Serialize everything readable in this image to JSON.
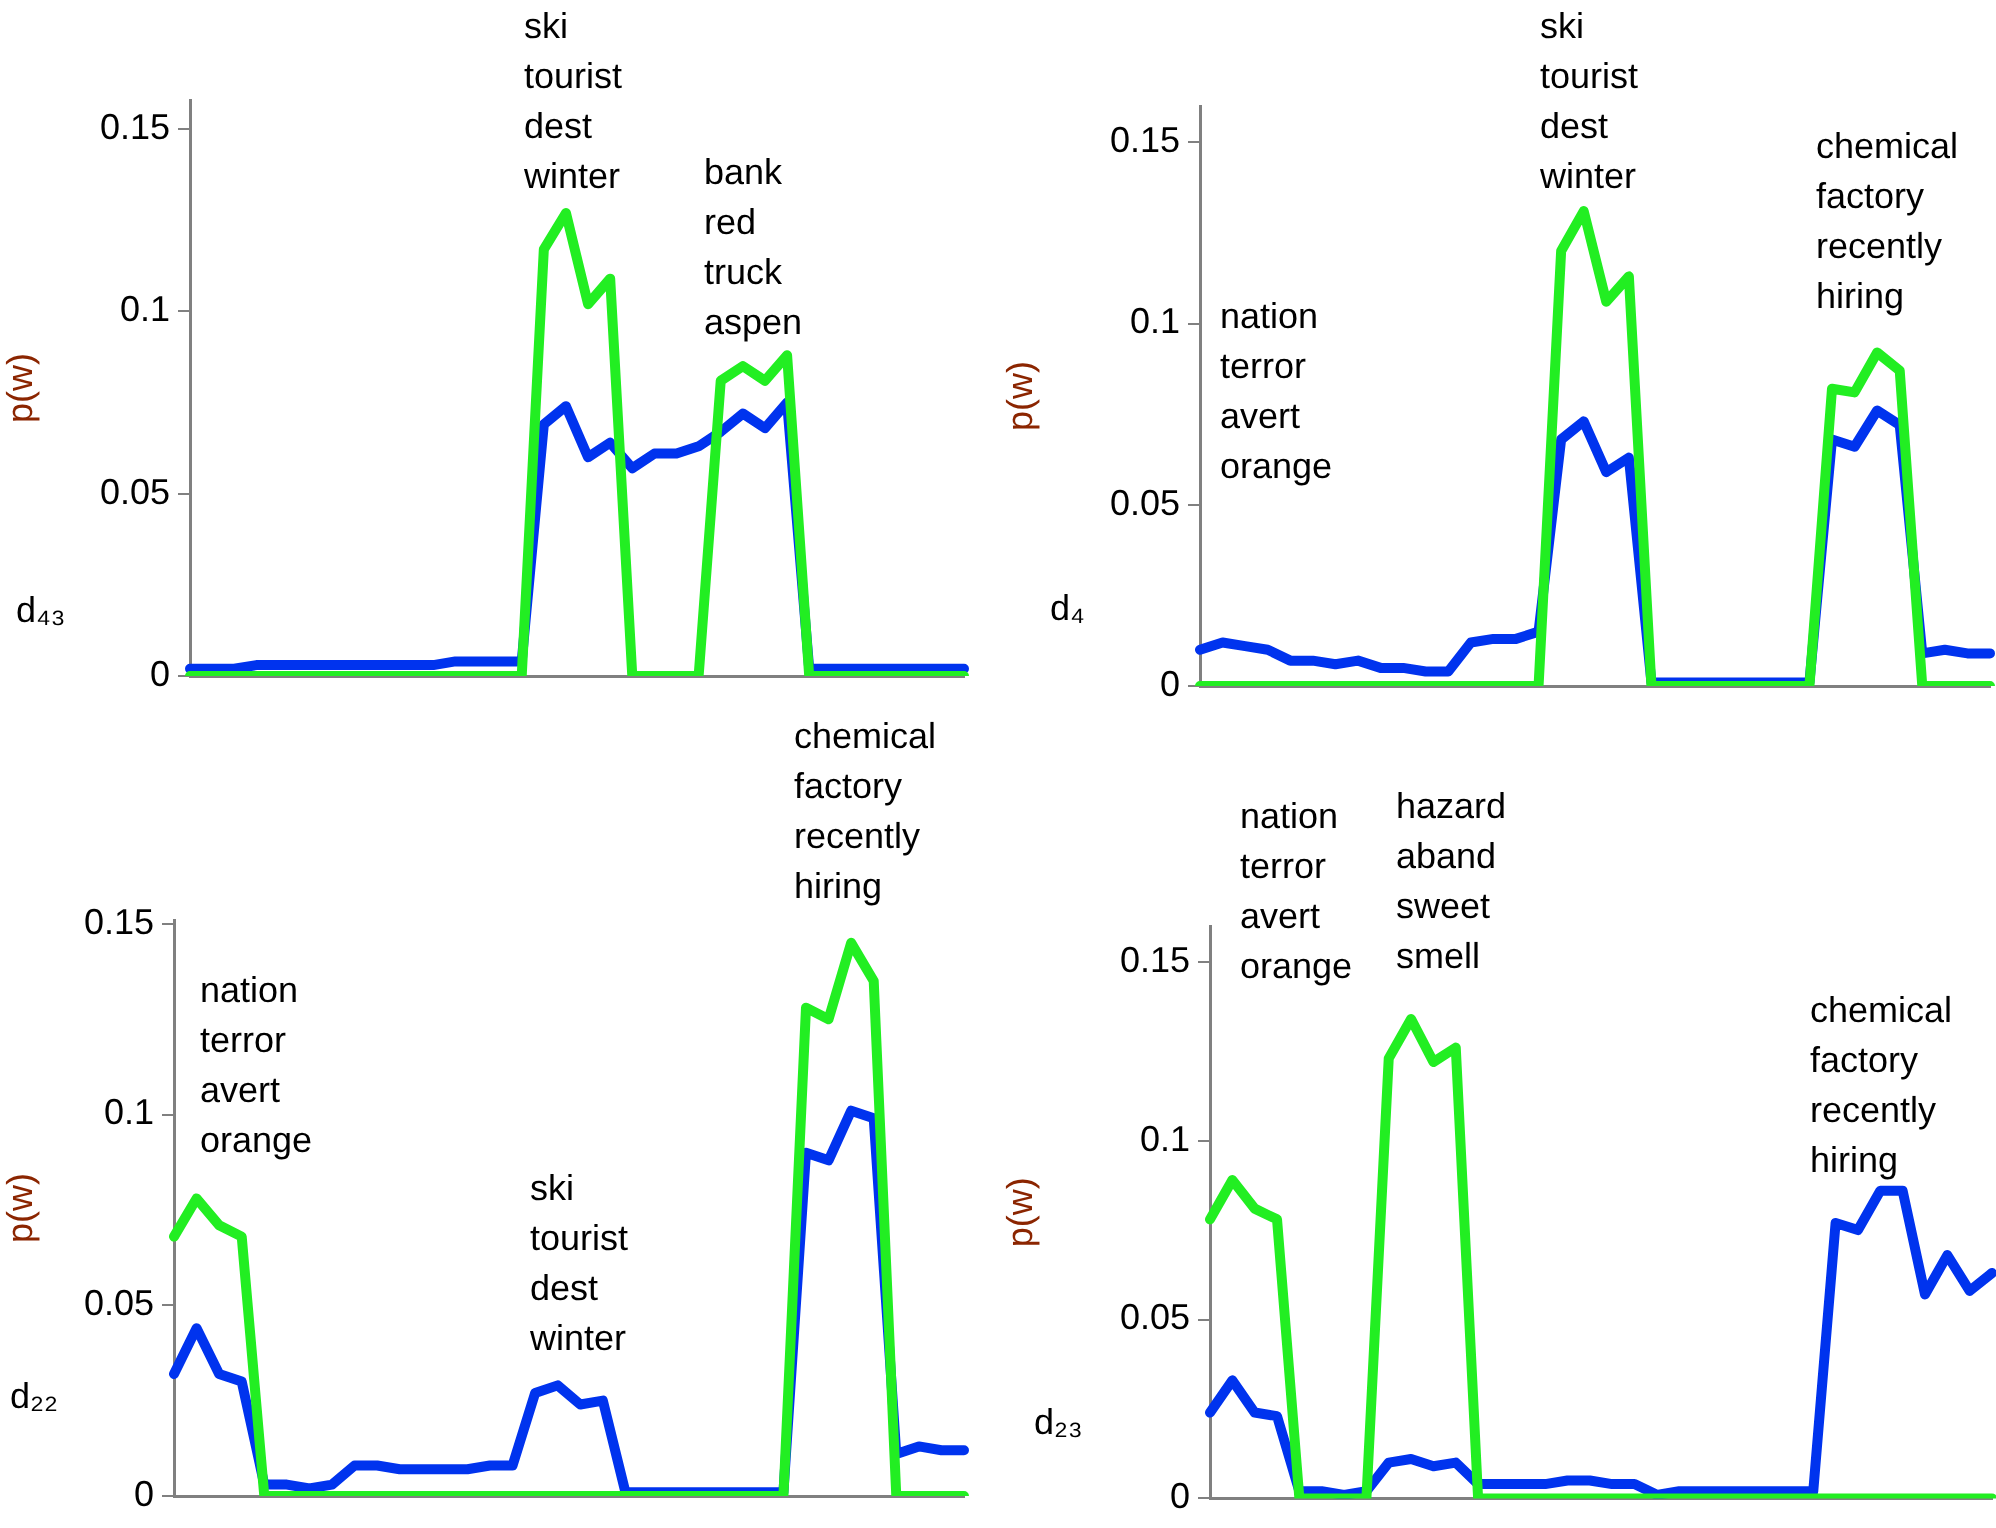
{
  "chart_data": [
    {
      "type": "line",
      "ylabel": "p(w)",
      "categories": [
        null,
        null,
        null,
        null,
        null,
        null,
        null,
        null,
        null,
        null,
        null,
        null,
        null,
        null,
        null,
        null,
        null,
        null,
        null,
        null,
        null,
        null,
        null,
        null,
        null,
        null,
        null,
        null,
        null,
        null,
        null,
        null,
        null,
        null,
        null,
        null
      ],
      "ylim": [
        0,
        0.158
      ],
      "yticks": [
        0,
        0.05,
        0.1,
        0.15
      ],
      "tick_labels": "y",
      "grid": false,
      "legend": false,
      "annotations": [
        "d₄₃",
        "ski\ntourist\ndest\nwinter",
        "bank\nred\ntruck\naspen"
      ],
      "series": [
        {
          "color": "#22ee22",
          "values": [
            0,
            0,
            0,
            0,
            0,
            0,
            0,
            0,
            0,
            0,
            0,
            0,
            0,
            0,
            0,
            0,
            0.117,
            0.127,
            0.102,
            0.109,
            0,
            0,
            0,
            0,
            0.081,
            0.085,
            0.081,
            0.088,
            0,
            0,
            0,
            0,
            0,
            0,
            0,
            0
          ]
        },
        {
          "color": "#0033ee",
          "values": [
            0.002,
            0.002,
            0.002,
            0.003,
            0.003,
            0.003,
            0.003,
            0.003,
            0.003,
            0.003,
            0.003,
            0.003,
            0.004,
            0.004,
            0.004,
            0.004,
            0.069,
            0.074,
            0.06,
            0.064,
            0.057,
            0.061,
            0.061,
            0.063,
            0.067,
            0.072,
            0.068,
            0.075,
            0.002,
            0.002,
            0.002,
            0.002,
            0.002,
            0.002,
            0.002,
            0.002
          ]
        }
      ]
    },
    {
      "type": "line",
      "ylabel": "p(w)",
      "categories": [
        null,
        null,
        null,
        null,
        null,
        null,
        null,
        null,
        null,
        null,
        null,
        null,
        null,
        null,
        null,
        null,
        null,
        null,
        null,
        null,
        null,
        null,
        null,
        null,
        null,
        null,
        null,
        null,
        null,
        null,
        null,
        null,
        null,
        null,
        null,
        null
      ],
      "ylim": [
        0,
        0.16
      ],
      "yticks": [
        0,
        0.05,
        0.1,
        0.15
      ],
      "tick_labels": "y",
      "grid": false,
      "legend": false,
      "annotations": [
        "d₄",
        "nation\nterror\navert\norange",
        "ski\ntourist\ndest\nwinter",
        "chemical\nfactory\nrecently\nhiring"
      ],
      "series": [
        {
          "color": "#22ee22",
          "values": [
            0,
            0,
            0,
            0,
            0,
            0,
            0,
            0,
            0,
            0,
            0,
            0,
            0,
            0,
            0,
            0,
            0.12,
            0.131,
            0.106,
            0.113,
            0,
            0,
            0,
            0,
            0,
            0,
            0,
            0,
            0.082,
            0.081,
            0.092,
            0.087,
            0,
            0,
            0,
            0
          ]
        },
        {
          "color": "#0033ee",
          "values": [
            0.01,
            0.012,
            0.011,
            0.01,
            0.007,
            0.007,
            0.006,
            0.007,
            0.005,
            0.005,
            0.004,
            0.004,
            0.012,
            0.013,
            0.013,
            0.015,
            0.068,
            0.073,
            0.059,
            0.063,
            0.001,
            0.001,
            0.001,
            0.001,
            0.001,
            0.001,
            0.001,
            0.001,
            0.068,
            0.066,
            0.076,
            0.072,
            0.009,
            0.01,
            0.009,
            0.009
          ]
        }
      ]
    },
    {
      "type": "line",
      "ylabel": "p(w)",
      "categories": [
        null,
        null,
        null,
        null,
        null,
        null,
        null,
        null,
        null,
        null,
        null,
        null,
        null,
        null,
        null,
        null,
        null,
        null,
        null,
        null,
        null,
        null,
        null,
        null,
        null,
        null,
        null,
        null,
        null,
        null,
        null,
        null,
        null,
        null,
        null,
        null
      ],
      "ylim": [
        0,
        0.151
      ],
      "yticks": [
        0,
        0.05,
        0.1,
        0.15
      ],
      "tick_labels": "y",
      "grid": false,
      "legend": false,
      "annotations": [
        "d₂₂",
        "nation\nterror\navert\norange",
        "ski\ntourist\ndest\nwinter",
        "chemical\nfactory\nrecently\nhiring"
      ],
      "series": [
        {
          "color": "#22ee22",
          "values": [
            0.068,
            0.078,
            0.071,
            0.068,
            0,
            0,
            0,
            0,
            0,
            0,
            0,
            0,
            0,
            0,
            0,
            0,
            0,
            0,
            0,
            0,
            0,
            0,
            0,
            0,
            0,
            0,
            0,
            0,
            0.128,
            0.125,
            0.145,
            0.135,
            0,
            0,
            0,
            0
          ]
        },
        {
          "color": "#0033ee",
          "values": [
            0.032,
            0.044,
            0.032,
            0.03,
            0.003,
            0.003,
            0.002,
            0.003,
            0.008,
            0.008,
            0.007,
            0.007,
            0.007,
            0.007,
            0.008,
            0.008,
            0.027,
            0.029,
            0.024,
            0.025,
            0.001,
            0.001,
            0.001,
            0.001,
            0.001,
            0.001,
            0.001,
            0.001,
            0.09,
            0.088,
            0.101,
            0.099,
            0.011,
            0.013,
            0.012,
            0.012
          ]
        }
      ]
    },
    {
      "type": "line",
      "ylabel": "p(w)",
      "categories": [
        null,
        null,
        null,
        null,
        null,
        null,
        null,
        null,
        null,
        null,
        null,
        null,
        null,
        null,
        null,
        null,
        null,
        null,
        null,
        null,
        null,
        null,
        null,
        null,
        null,
        null,
        null,
        null,
        null,
        null,
        null,
        null,
        null,
        null,
        null,
        null
      ],
      "ylim": [
        0,
        0.16
      ],
      "yticks": [
        0,
        0.05,
        0.1,
        0.15
      ],
      "tick_labels": "y",
      "grid": false,
      "legend": false,
      "annotations": [
        "d₂₃",
        "nation\nterror\navert\norange",
        "hazard\naband\nsweet\nsmell",
        "chemical\nfactory\nrecently\nhiring"
      ],
      "series": [
        {
          "color": "#22ee22",
          "values": [
            0.078,
            0.089,
            0.081,
            0.078,
            0,
            0,
            0,
            0,
            0.123,
            0.134,
            0.122,
            0.126,
            0,
            0,
            0,
            0,
            0,
            0,
            0,
            0,
            0,
            0,
            0,
            0,
            0,
            0,
            0,
            0,
            0,
            0,
            0,
            0,
            0,
            0,
            0,
            0
          ]
        },
        {
          "color": "#0033ee",
          "values": [
            0.024,
            0.033,
            0.024,
            0.023,
            0.002,
            0.002,
            0.001,
            0.002,
            0.01,
            0.011,
            0.009,
            0.01,
            0.004,
            0.004,
            0.004,
            0.004,
            0.005,
            0.005,
            0.004,
            0.004,
            0.001,
            0.002,
            0.002,
            0.002,
            0.002,
            0.002,
            0.002,
            0.002,
            0.077,
            0.075,
            0.086,
            0.086,
            0.057,
            0.068,
            0.058,
            0.063
          ]
        }
      ]
    }
  ]
}
